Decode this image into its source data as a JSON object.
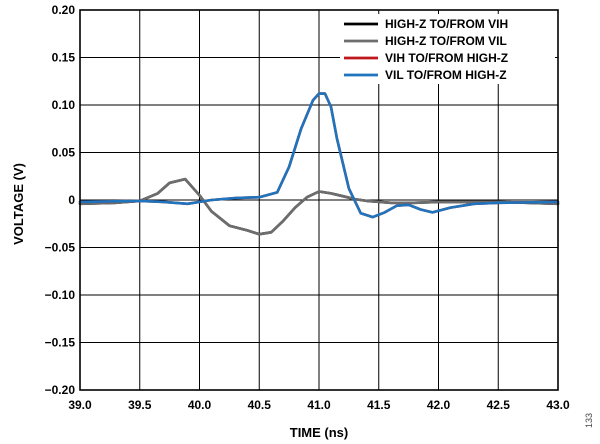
{
  "chart_data": {
    "type": "line",
    "xlabel": "TIME (ns)",
    "ylabel": "VOLTAGE (V)",
    "xlim": [
      39.0,
      43.0
    ],
    "ylim": [
      -0.2,
      0.2
    ],
    "x_ticks": [
      39.0,
      39.5,
      40.0,
      40.5,
      41.0,
      41.5,
      42.0,
      42.5,
      43.0
    ],
    "x_tick_labels": [
      "39.0",
      "39.5",
      "40.0",
      "40.5",
      "41.0",
      "41.5",
      "42.0",
      "42.5",
      "43.0"
    ],
    "y_ticks": [
      0.2,
      0.15,
      0.1,
      0.05,
      0,
      -0.05,
      -0.1,
      -0.15,
      -0.2
    ],
    "y_tick_labels": [
      "0.20",
      "0.15",
      "0.10",
      "0.05",
      "0",
      "−0.05",
      "−0.10",
      "−0.15",
      "−0.20"
    ],
    "grid": true,
    "legend_position": "top-right",
    "figure_id": "133",
    "series": [
      {
        "name": "HIGH-Z TO/FROM VIH",
        "color": "#000000",
        "x": [
          39.0,
          39.3,
          39.5,
          39.65,
          39.75,
          39.88,
          40.0,
          40.1,
          40.25,
          40.4,
          40.5,
          40.6,
          40.7,
          40.8,
          40.9,
          41.0,
          41.1,
          41.2,
          41.3,
          41.4,
          41.6,
          41.8,
          42.0,
          42.5,
          43.0
        ],
        "y": [
          -0.004,
          -0.003,
          -0.001,
          0.007,
          0.018,
          0.022,
          0.005,
          -0.012,
          -0.027,
          -0.032,
          -0.036,
          -0.034,
          -0.022,
          -0.008,
          0.003,
          0.009,
          0.007,
          0.004,
          0.001,
          -0.001,
          -0.003,
          -0.003,
          -0.002,
          -0.002,
          -0.004
        ]
      },
      {
        "name": "HIGH-Z TO/FROM VIL",
        "color": "#6d6d6d",
        "x": [
          39.0,
          39.3,
          39.5,
          39.65,
          39.75,
          39.88,
          40.0,
          40.1,
          40.25,
          40.4,
          40.5,
          40.6,
          40.7,
          40.8,
          40.9,
          41.0,
          41.1,
          41.2,
          41.3,
          41.4,
          41.6,
          41.8,
          42.0,
          42.5,
          43.0
        ],
        "y": [
          -0.004,
          -0.003,
          -0.001,
          0.007,
          0.018,
          0.022,
          0.005,
          -0.012,
          -0.027,
          -0.032,
          -0.036,
          -0.034,
          -0.022,
          -0.008,
          0.003,
          0.009,
          0.007,
          0.004,
          0.001,
          -0.001,
          -0.003,
          -0.003,
          -0.002,
          -0.002,
          -0.004
        ]
      },
      {
        "name": "VIH TO/FROM HIGH-Z",
        "color": "#c0171c",
        "x": [
          39.0,
          39.5,
          39.7,
          39.9,
          40.1,
          40.3,
          40.5,
          40.65,
          40.75,
          40.85,
          40.95,
          41.0,
          41.05,
          41.1,
          41.15,
          41.25,
          41.35,
          41.45,
          41.55,
          41.65,
          41.75,
          41.85,
          41.95,
          42.1,
          42.3,
          42.5,
          43.0
        ],
        "y": [
          -0.002,
          -0.001,
          -0.002,
          -0.004,
          0.0,
          0.002,
          0.003,
          0.008,
          0.035,
          0.075,
          0.105,
          0.112,
          0.112,
          0.098,
          0.065,
          0.012,
          -0.014,
          -0.018,
          -0.013,
          -0.006,
          -0.005,
          -0.01,
          -0.013,
          -0.008,
          -0.004,
          -0.003,
          -0.002
        ]
      },
      {
        "name": "VIL TO/FROM HIGH-Z",
        "color": "#1e74bd",
        "x": [
          39.0,
          39.5,
          39.7,
          39.9,
          40.1,
          40.3,
          40.5,
          40.65,
          40.75,
          40.85,
          40.95,
          41.0,
          41.05,
          41.1,
          41.15,
          41.25,
          41.35,
          41.45,
          41.55,
          41.65,
          41.75,
          41.85,
          41.95,
          42.1,
          42.3,
          42.5,
          43.0
        ],
        "y": [
          -0.002,
          -0.001,
          -0.002,
          -0.004,
          0.0,
          0.002,
          0.003,
          0.008,
          0.035,
          0.075,
          0.105,
          0.112,
          0.112,
          0.098,
          0.065,
          0.012,
          -0.014,
          -0.018,
          -0.013,
          -0.006,
          -0.005,
          -0.01,
          -0.013,
          -0.008,
          -0.004,
          -0.003,
          -0.002
        ]
      }
    ]
  }
}
